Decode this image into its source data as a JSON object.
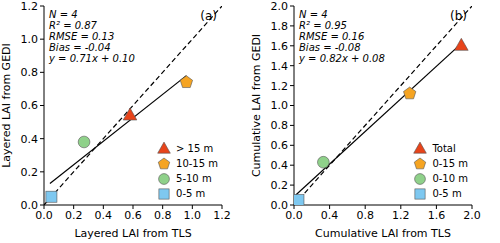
{
  "chart_data": [
    {
      "type": "scatter",
      "title": "(a)",
      "x_label": "Layered LAI from TLS",
      "y_label": "Layered LAI from GEDI",
      "annotations": [
        "N = 4",
        "R² = 0.87",
        "RMSE = 0.13",
        "Bias = -0.04",
        "y = 0.71x + 0.10"
      ],
      "xlim": [
        0,
        1.2
      ],
      "ylim": [
        0,
        1.2
      ],
      "xticks": [
        {
          "value": 0,
          "label": "0.0"
        },
        0.2,
        0.4,
        0.6,
        0.8,
        {
          "value": 1,
          "label": "1.0"
        },
        1.2
      ],
      "yticks": [
        {
          "value": 0,
          "label": "0.0"
        },
        0.2,
        0.4,
        0.6,
        0.8,
        {
          "value": 1,
          "label": "1.0"
        },
        1.2
      ],
      "legend": "lower right",
      "series": [
        {
          "name": "> 15 m",
          "color": "#e8441a",
          "marker": "triangle",
          "x": [
            0.58
          ],
          "y": [
            0.54
          ]
        },
        {
          "name": "10-15 m",
          "color": "#f5a422",
          "marker": "pentagon",
          "x": [
            0.96
          ],
          "y": [
            0.74
          ]
        },
        {
          "name": "5-10 m",
          "color": "#8fd18a",
          "marker": "circle",
          "x": [
            0.27
          ],
          "y": [
            0.38
          ]
        },
        {
          "name": "0-5 m",
          "color": "#7ec8f0",
          "marker": "square",
          "x": [
            0.05
          ],
          "y": [
            0.05
          ]
        }
      ],
      "lines": [
        {
          "x": [
            0,
            1.2
          ],
          "y": [
            0,
            1.2
          ],
          "color": "#000000",
          "line_style": "dashed"
        },
        {
          "x": [
            0.04,
            0.96
          ],
          "y": [
            0.13,
            0.78
          ],
          "color": "#000000",
          "line_style": "solid"
        }
      ]
    },
    {
      "type": "scatter",
      "title": "(b)",
      "x_label": "Cumulative LAI from TLS",
      "y_label": "Cumulative LAI from GEDI",
      "annotations": [
        "N = 4",
        "R² = 0.95",
        "RMSE = 0.16",
        "Bias = -0.08",
        "y = 0.82x + 0.08"
      ],
      "xlim": [
        0,
        2
      ],
      "ylim": [
        0,
        2
      ],
      "xticks": [
        {
          "value": 0,
          "label": "0.0"
        },
        0.4,
        0.8,
        1.2,
        1.6,
        {
          "value": 2,
          "label": "2.0"
        }
      ],
      "yticks": [
        {
          "value": 0,
          "label": "0.0"
        },
        0.2,
        0.4,
        0.6,
        0.8,
        {
          "value": 1,
          "label": "1.0"
        },
        1.2,
        1.4,
        1.6,
        1.8,
        {
          "value": 2,
          "label": "2.0"
        }
      ],
      "legend": "lower right",
      "series": [
        {
          "name": "Total",
          "color": "#e8441a",
          "marker": "triangle",
          "x": [
            1.88
          ],
          "y": [
            1.6
          ]
        },
        {
          "name": "0-15 m",
          "color": "#f5a422",
          "marker": "pentagon",
          "x": [
            1.3
          ],
          "y": [
            1.12
          ]
        },
        {
          "name": "0-10 m",
          "color": "#8fd18a",
          "marker": "circle",
          "x": [
            0.33
          ],
          "y": [
            0.43
          ]
        },
        {
          "name": "0-5 m",
          "color": "#7ec8f0",
          "marker": "square",
          "x": [
            0.05
          ],
          "y": [
            0.05
          ]
        }
      ],
      "lines": [
        {
          "x": [
            0,
            2
          ],
          "y": [
            0,
            2
          ],
          "color": "#000000",
          "line_style": "dashed"
        },
        {
          "x": [
            0.02,
            1.9
          ],
          "y": [
            0.1,
            1.64
          ],
          "color": "#000000",
          "line_style": "solid"
        }
      ]
    }
  ]
}
